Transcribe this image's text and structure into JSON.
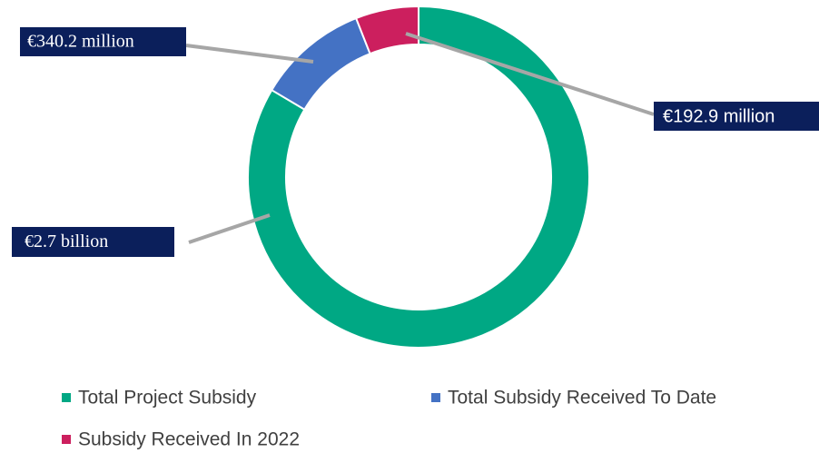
{
  "chart_data": {
    "type": "pie",
    "categories": [
      "Total Project Subsidy",
      "Total Subsidy Received To Date",
      "Subsidy Received In 2022"
    ],
    "values": [
      2700,
      340.2,
      192.9
    ],
    "value_labels": [
      "€2.7 billion",
      "€340.2 million",
      "€192.9 million"
    ],
    "colors": [
      "#00a884",
      "#4472c4",
      "#cc1f5e"
    ],
    "legend": "bottom"
  }
}
